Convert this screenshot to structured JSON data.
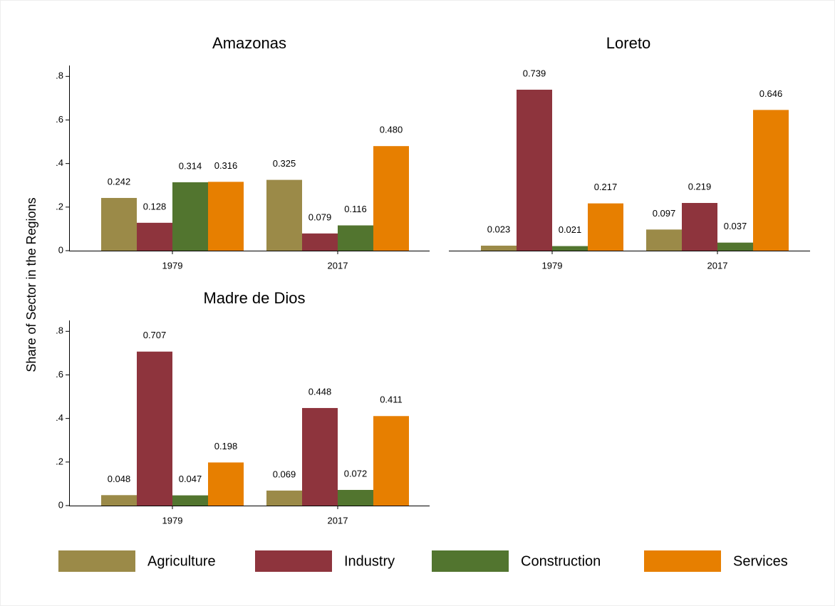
{
  "chart_data": {
    "type": "bar",
    "ylabel": "Share of Sector in the Regions",
    "ylim": [
      0,
      0.85
    ],
    "yticks": [
      0,
      {
        "value": 0.2,
        "label": ".2"
      },
      {
        "value": 0.4,
        "label": ".4"
      },
      {
        "value": 0.6,
        "label": ".6"
      },
      {
        "value": 0.8,
        "label": ".8"
      }
    ],
    "series": [
      {
        "name": "Agriculture",
        "color": "#9b8a48"
      },
      {
        "name": "Industry",
        "color": "#8e343d"
      },
      {
        "name": "Construction",
        "color": "#52752f"
      },
      {
        "name": "Services",
        "color": "#e77f00"
      }
    ],
    "panels": [
      {
        "title": "Amazonas",
        "categories": [
          "1979",
          "2017"
        ],
        "series": [
          {
            "values": [
              0.242,
              0.325
            ],
            "value_labels": [
              "0.242",
              "0.325"
            ]
          },
          {
            "values": [
              0.128,
              0.079
            ],
            "value_labels": [
              "0.128",
              "0.079"
            ]
          },
          {
            "values": [
              0.314,
              0.116
            ],
            "value_labels": [
              "0.314",
              "0.116"
            ]
          },
          {
            "values": [
              0.316,
              0.48
            ],
            "value_labels": [
              "0.316",
              "0.480"
            ]
          }
        ]
      },
      {
        "title": "Loreto",
        "categories": [
          "1979",
          "2017"
        ],
        "series": [
          {
            "values": [
              0.023,
              0.097
            ],
            "value_labels": [
              "0.023",
              "0.097"
            ]
          },
          {
            "values": [
              0.739,
              0.219
            ],
            "value_labels": [
              "0.739",
              "0.219"
            ]
          },
          {
            "values": [
              0.021,
              0.037
            ],
            "value_labels": [
              "0.021",
              "0.037"
            ]
          },
          {
            "values": [
              0.217,
              0.646
            ],
            "value_labels": [
              "0.217",
              "0.646"
            ]
          }
        ]
      },
      {
        "title": "Madre de Dios",
        "categories": [
          "1979",
          "2017"
        ],
        "series": [
          {
            "values": [
              0.048,
              0.069
            ],
            "value_labels": [
              "0.048",
              "0.069"
            ]
          },
          {
            "values": [
              0.707,
              0.448
            ],
            "value_labels": [
              "0.707",
              "0.448"
            ]
          },
          {
            "values": [
              0.047,
              0.072
            ],
            "value_labels": [
              "0.047",
              "0.072"
            ]
          },
          {
            "values": [
              0.198,
              0.411
            ],
            "value_labels": [
              "0.198",
              "0.411"
            ]
          }
        ]
      }
    ]
  }
}
